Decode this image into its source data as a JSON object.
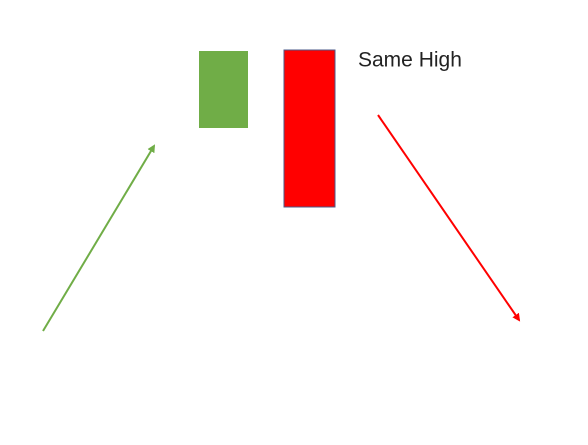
{
  "label": "Same High"
}
